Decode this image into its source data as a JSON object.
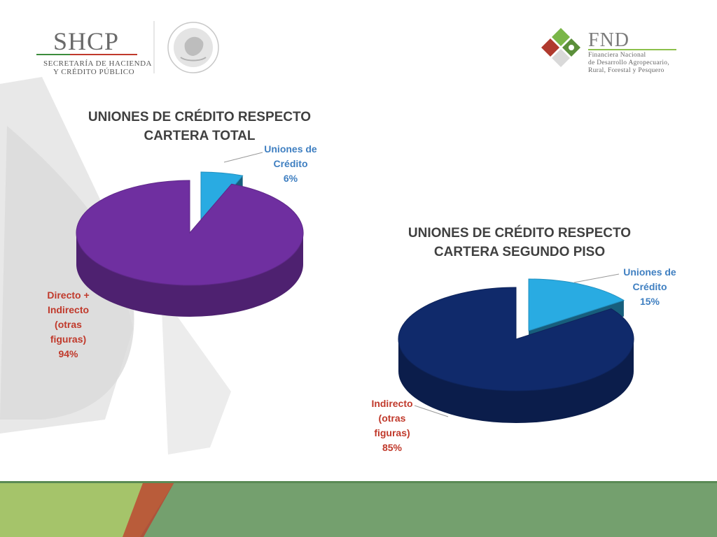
{
  "header": {
    "shcp": {
      "title": "SHCP",
      "line1": "SECRETARÍA DE HACIENDA",
      "line2": "Y CRÉDITO PÚBLICO"
    },
    "seal_icon": "mexico-coat-of-arms-icon",
    "fnd": {
      "title": "FND",
      "line1": "Financiera Nacional",
      "line2": "de Desarrollo Agropecuario,",
      "line3": "Rural, Forestal y Pesquero"
    },
    "fnd_logo_icon": "fnd-logo-icon"
  },
  "colors": {
    "highlight_slice": "#29abe2",
    "chart1_main": "#6f2fa0",
    "chart2_main": "#102a6b",
    "label_blue": "#3f7fc1",
    "label_red": "#c0392b",
    "footer_green": "#74a06e"
  },
  "chart_data": [
    {
      "type": "pie",
      "title": "UNIONES DE CRÉDITO RESPECTO CARTERA TOTAL",
      "title_line1": "UNIONES DE CRÉDITO RESPECTO",
      "title_line2": "CARTERA TOTAL",
      "slices": [
        {
          "label": "Uniones de Crédito",
          "label_lines": [
            "Uniones de",
            "Crédito"
          ],
          "value": 6,
          "value_label": "6%",
          "exploded": true
        },
        {
          "label": "Directo + Indirecto (otras figuras)",
          "label_lines": [
            "Directo +",
            "Indirecto",
            "(otras",
            "figuras)"
          ],
          "value": 94,
          "value_label": "94%",
          "exploded": false
        }
      ]
    },
    {
      "type": "pie",
      "title": "UNIONES DE CRÉDITO RESPECTO CARTERA SEGUNDO PISO",
      "title_line1": "UNIONES DE CRÉDITO RESPECTO",
      "title_line2": "CARTERA SEGUNDO PISO",
      "slices": [
        {
          "label": "Uniones de Crédito",
          "label_lines": [
            "Uniones de",
            "Crédito"
          ],
          "value": 15,
          "value_label": "15%",
          "exploded": true
        },
        {
          "label": "Indirecto (otras figuras)",
          "label_lines": [
            "Indirecto",
            "(otras",
            "figuras)"
          ],
          "value": 85,
          "value_label": "85%",
          "exploded": false
        }
      ]
    }
  ]
}
